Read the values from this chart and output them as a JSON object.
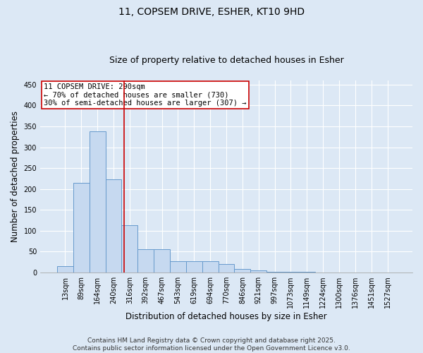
{
  "title_line1": "11, COPSEM DRIVE, ESHER, KT10 9HD",
  "title_line2": "Size of property relative to detached houses in Esher",
  "categories": [
    "13sqm",
    "89sqm",
    "164sqm",
    "240sqm",
    "316sqm",
    "392sqm",
    "467sqm",
    "543sqm",
    "619sqm",
    "694sqm",
    "770sqm",
    "846sqm",
    "921sqm",
    "997sqm",
    "1073sqm",
    "1149sqm",
    "1224sqm",
    "1300sqm",
    "1376sqm",
    "1451sqm",
    "1527sqm"
  ],
  "values": [
    15,
    215,
    338,
    223,
    113,
    55,
    55,
    27,
    27,
    27,
    20,
    8,
    5,
    1,
    1,
    1,
    0,
    0,
    0,
    0,
    0
  ],
  "bar_color": "#c6d9f0",
  "bar_edge_color": "#6699cc",
  "red_line_x": 3.65,
  "red_line_color": "#cc0000",
  "annotation_text": "11 COPSEM DRIVE: 290sqm\n← 70% of detached houses are smaller (730)\n30% of semi-detached houses are larger (307) →",
  "annotation_box_color": "#ffffff",
  "annotation_box_edge_color": "#cc0000",
  "xlabel": "Distribution of detached houses by size in Esher",
  "ylabel": "Number of detached properties",
  "ylim": [
    0,
    460
  ],
  "yticks": [
    0,
    50,
    100,
    150,
    200,
    250,
    300,
    350,
    400,
    450
  ],
  "footer_line1": "Contains HM Land Registry data © Crown copyright and database right 2025.",
  "footer_line2": "Contains public sector information licensed under the Open Government Licence v3.0.",
  "bg_color": "#dce8f5",
  "plot_bg_color": "#dce8f5",
  "grid_color": "#ffffff",
  "title_fontsize": 10,
  "subtitle_fontsize": 9,
  "axis_label_fontsize": 8.5,
  "tick_fontsize": 7,
  "annotation_fontsize": 7.5,
  "footer_fontsize": 6.5
}
